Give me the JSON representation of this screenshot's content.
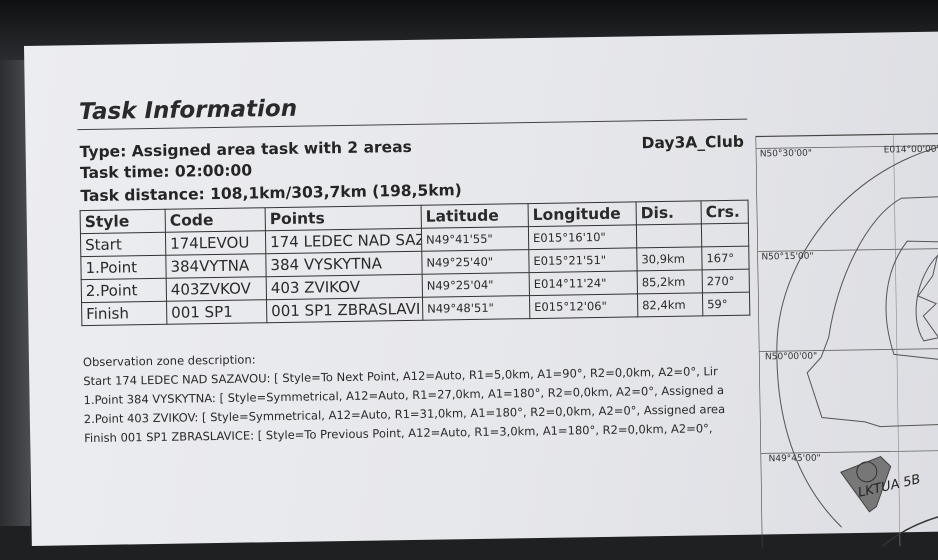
{
  "document": {
    "title": "Task Information",
    "type_line": "Type: Assigned area task with 2 areas",
    "club": "Day3A_Club",
    "task_time": "Task time: 02:00:00",
    "task_distance": "Task distance: 108,1km/303,7km (198,5km)"
  },
  "table": {
    "headers": [
      "Style",
      "Code",
      "Points",
      "Latitude",
      "Longitude",
      "Dis.",
      "Crs."
    ],
    "rows": [
      [
        "Start",
        "174LEVOU",
        "174 LEDEC NAD SAZ",
        "N49°41'55\"",
        "E015°16'10\"",
        "",
        ""
      ],
      [
        "1.Point",
        "384VYTNA",
        "384 VYSKYTNA",
        "N49°25'40\"",
        "E015°21'51\"",
        "30,9km",
        "167°"
      ],
      [
        "2.Point",
        "403ZVKOV",
        "403 ZVIKOV",
        "N49°25'04\"",
        "E014°11'24\"",
        "85,2km",
        "270°"
      ],
      [
        "Finish",
        "001 SP1",
        "001 SP1 ZBRASLAVI",
        "N49°48'51\"",
        "E015°12'06\"",
        "82,4km",
        "59°"
      ]
    ]
  },
  "observation": {
    "heading": "Observation zone description:",
    "lines": [
      "Start 174 LEDEC NAD SAZAVOU: [ Style=To Next Point, A12=Auto, R1=5,0km, A1=90°, R2=0,0km, A2=0°, Lir",
      "1.Point 384 VYSKYTNA: [ Style=Symmetrical, A12=Auto, R1=27,0km, A1=180°, R2=0,0km, A2=0°, Assigned a",
      "2.Point 403 ZVIKOV: [ Style=Symmetrical, A12=Auto, R1=31,0km, A1=180°, R2=0,0km, A2=0°, Assigned area",
      "Finish 001 SP1 ZBRASLAVICE: [ Style=To Previous Point, A12=Auto, R1=3,0km, A1=180°, R2=0,0km, A2=0°,"
    ]
  },
  "map": {
    "lat_labels": [
      "N50°30'00\"",
      "N50°15'00\"",
      "N50°00'00\"",
      "N49°45'00\""
    ],
    "lon_label": "E014°00'00\"",
    "handwritten_note": "LKTUA 5B"
  }
}
